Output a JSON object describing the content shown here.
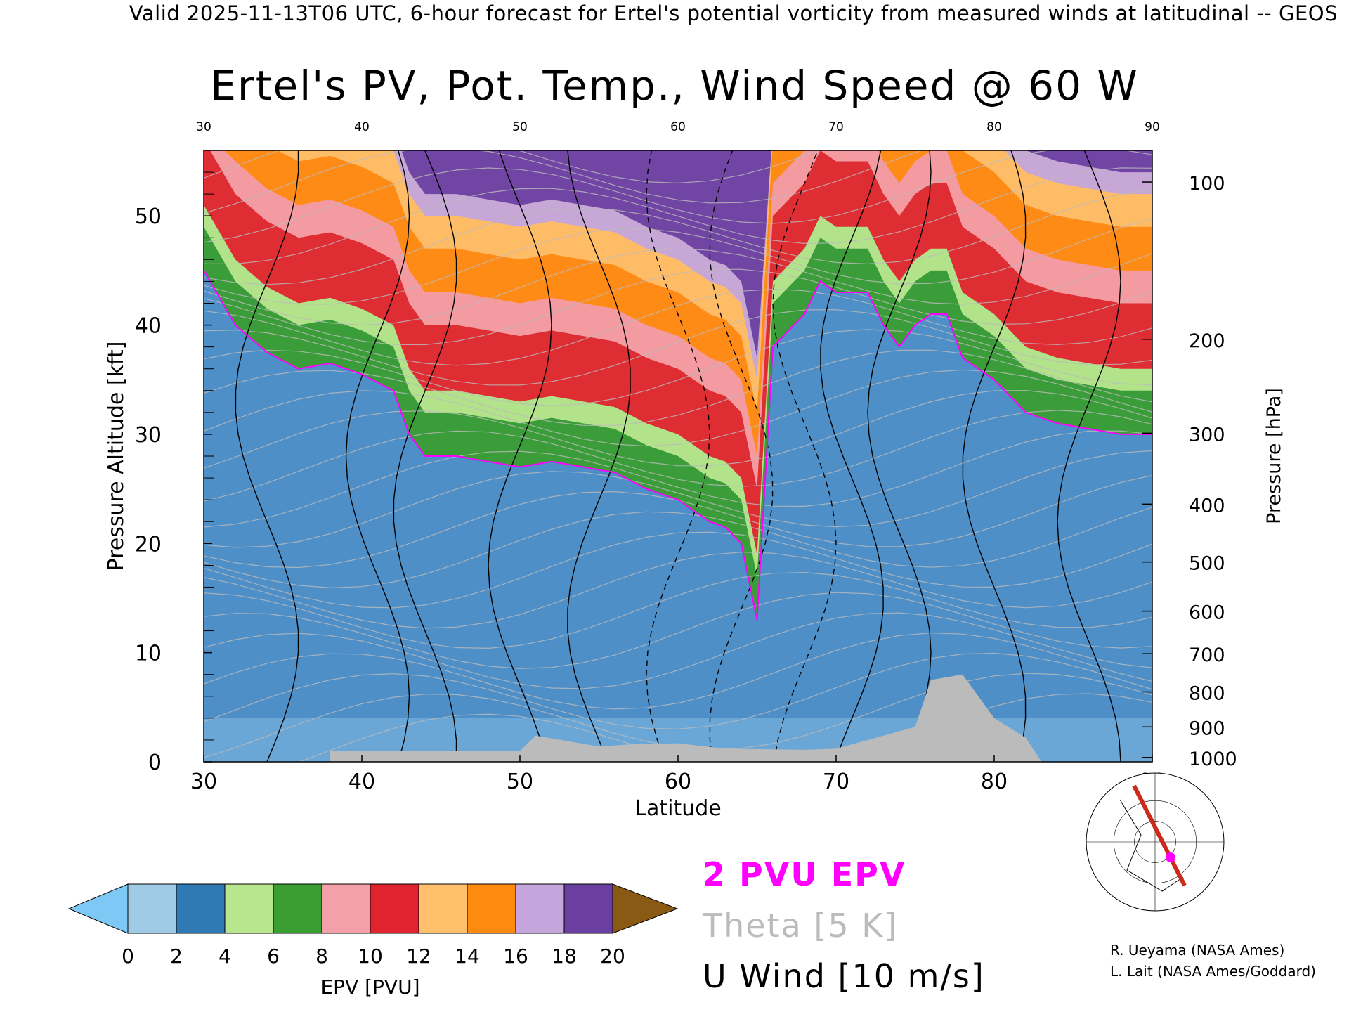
{
  "banner": "Valid 2025-11-13T06 UTC, 6-hour forecast for Ertel's potential vorticity from measured winds at latitudinal -- GEOS",
  "chart_data": {
    "type": "heatmap",
    "title": "Ertel's PV, Pot. Temp., Wind Speed @ 60 W",
    "xlabel": "Latitude",
    "ylabel_left": "Pressure Altitude [kft]",
    "ylabel_right": "Pressure [hPa]",
    "xlim": [
      30,
      90
    ],
    "ylim": [
      0,
      56
    ],
    "x_ticks": [
      "30",
      "40",
      "50",
      "60",
      "70",
      "80",
      "90"
    ],
    "y_ticks_left": [
      "0",
      "10",
      "20",
      "30",
      "40",
      "50"
    ],
    "y_ticks_right": [
      {
        "label": "100",
        "kft": 53.1
      },
      {
        "label": "200",
        "kft": 38.7
      },
      {
        "label": "300",
        "kft": 30.1
      },
      {
        "label": "400",
        "kft": 23.6
      },
      {
        "label": "500",
        "kft": 18.3
      },
      {
        "label": "600",
        "kft": 13.8
      },
      {
        "label": "700",
        "kft": 9.9
      },
      {
        "label": "800",
        "kft": 6.4
      },
      {
        "label": "900",
        "kft": 3.2
      },
      {
        "label": "1000",
        "kft": 0.4
      }
    ],
    "tropopause_2pvu_kft": [
      [
        30,
        45
      ],
      [
        32,
        40
      ],
      [
        34,
        37.5
      ],
      [
        36,
        36
      ],
      [
        38,
        36.5
      ],
      [
        40,
        35.5
      ],
      [
        42,
        34
      ],
      [
        43,
        30
      ],
      [
        44,
        28
      ],
      [
        46,
        28
      ],
      [
        48,
        27.5
      ],
      [
        50,
        27
      ],
      [
        52,
        27.5
      ],
      [
        54,
        27
      ],
      [
        56,
        26.5
      ],
      [
        58,
        25
      ],
      [
        60,
        24
      ],
      [
        61,
        23
      ],
      [
        62,
        22
      ],
      [
        63,
        21.5
      ],
      [
        64,
        20
      ],
      [
        65,
        13
      ],
      [
        66,
        38
      ],
      [
        68,
        41
      ],
      [
        69,
        44
      ],
      [
        70,
        43
      ],
      [
        72,
        43
      ],
      [
        73,
        40
      ],
      [
        74,
        38
      ],
      [
        75,
        40
      ],
      [
        76,
        41
      ],
      [
        77,
        41
      ],
      [
        78,
        37
      ],
      [
        80,
        35
      ],
      [
        82,
        32
      ],
      [
        84,
        31
      ],
      [
        86,
        30.5
      ],
      [
        88,
        30
      ],
      [
        90,
        30
      ]
    ],
    "colorbar": {
      "label": "EPV [PVU]",
      "ticks": [
        "0",
        "2",
        "4",
        "6",
        "8",
        "10",
        "12",
        "14",
        "16",
        "18",
        "20"
      ],
      "under_color": "#7ec8f5",
      "over_color": "#8a5a14",
      "colors": [
        "#9fcbe6",
        "#2f79b5",
        "#b8e68e",
        "#3a9e32",
        "#f4a0a8",
        "#e0232e",
        "#ffbf6b",
        "#ff8a10",
        "#c4a5dc",
        "#6b3fa0",
        "#fcf0a8"
      ]
    },
    "terrain": {
      "color": "#bbbbbb",
      "description_labels": []
    }
  },
  "legend": {
    "epv": "2 PVU EPV",
    "theta": "Theta [5 K]",
    "uwind": "U Wind [10 m/s]"
  },
  "colors": {
    "epv_line": "#ff00ff",
    "theta_line": "#bbbbbb",
    "uwind_line": "#000000"
  },
  "credits": {
    "line1": "R. Ueyama (NASA Ames)",
    "line2": "L. Lait (NASA Ames/Goddard)"
  }
}
